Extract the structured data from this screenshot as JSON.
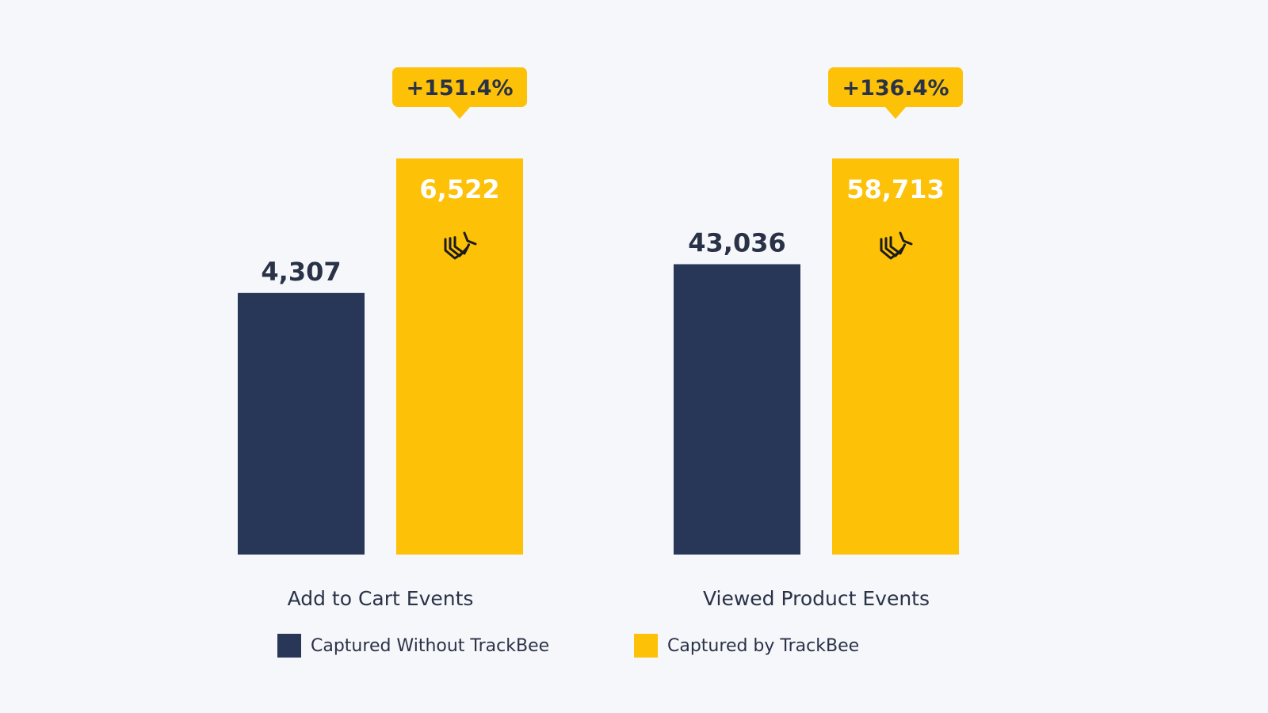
{
  "chart_data": {
    "type": "bar",
    "title": "",
    "xlabel": "",
    "ylabel": "",
    "grid": false,
    "categories": [
      "Add to Cart Events",
      "Viewed Product Events"
    ],
    "series": [
      {
        "name": "Captured Without TrackBee",
        "color": "#283758",
        "values": [
          4307,
          43036
        ],
        "labels": [
          "4,307",
          "43,036"
        ]
      },
      {
        "name": "Captured by TrackBee",
        "color": "#fdc107",
        "values": [
          6522,
          58713
        ],
        "labels": [
          "6,522",
          "58,713"
        ]
      }
    ],
    "annotations": [
      {
        "category": "Add to Cart Events",
        "text": "+151.4%"
      },
      {
        "category": "Viewed Product Events",
        "text": "+136.4%"
      }
    ],
    "scale_note": "Each category group is drawn with its own implicit scale; TrackBee bars share one height and the value label sits inside the bar.",
    "bar_icon": "trackbee-logo-icon",
    "legend_position": "bottom-center"
  },
  "colors": {
    "background": "#f5f7fa",
    "text_dark": "#2a3247",
    "label_white": "#ffffff"
  }
}
